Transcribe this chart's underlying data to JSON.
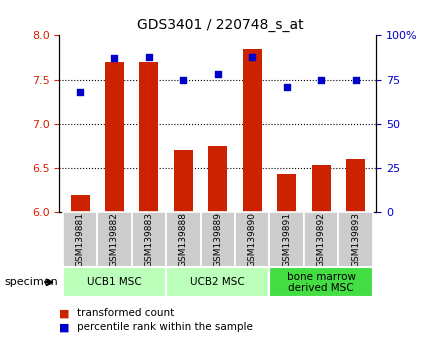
{
  "title": "GDS3401 / 220748_s_at",
  "samples": [
    "GSM139881",
    "GSM139882",
    "GSM139883",
    "GSM139888",
    "GSM139889",
    "GSM139890",
    "GSM139891",
    "GSM139892",
    "GSM139893"
  ],
  "bar_values": [
    6.2,
    7.7,
    7.7,
    6.7,
    6.75,
    7.85,
    6.43,
    6.53,
    6.6
  ],
  "dot_values": [
    68,
    87,
    88,
    75,
    78,
    88,
    71,
    75,
    75
  ],
  "bar_color": "#cc2200",
  "dot_color": "#0000cc",
  "ylim_left": [
    6,
    8
  ],
  "ylim_right": [
    0,
    100
  ],
  "yticks_left": [
    6,
    6.5,
    7,
    7.5,
    8
  ],
  "yticks_right": [
    0,
    25,
    50,
    75,
    100
  ],
  "groups": [
    {
      "label": "UCB1 MSC",
      "indices": [
        0,
        1,
        2
      ],
      "color": "#bbffbb"
    },
    {
      "label": "UCB2 MSC",
      "indices": [
        3,
        4,
        5
      ],
      "color": "#bbffbb"
    },
    {
      "label": "bone marrow\nderived MSC",
      "indices": [
        6,
        7,
        8
      ],
      "color": "#44dd44"
    }
  ],
  "specimen_label": "specimen",
  "legend_bar_label": "transformed count",
  "legend_dot_label": "percentile rank within the sample",
  "bg_color": "#ffffff",
  "bar_bottom": 6.0,
  "tick_label_color_left": "#dd2200",
  "tick_label_color_right": "#0000cc",
  "sample_box_color": "#cccccc",
  "sample_box_edge": "#999999"
}
